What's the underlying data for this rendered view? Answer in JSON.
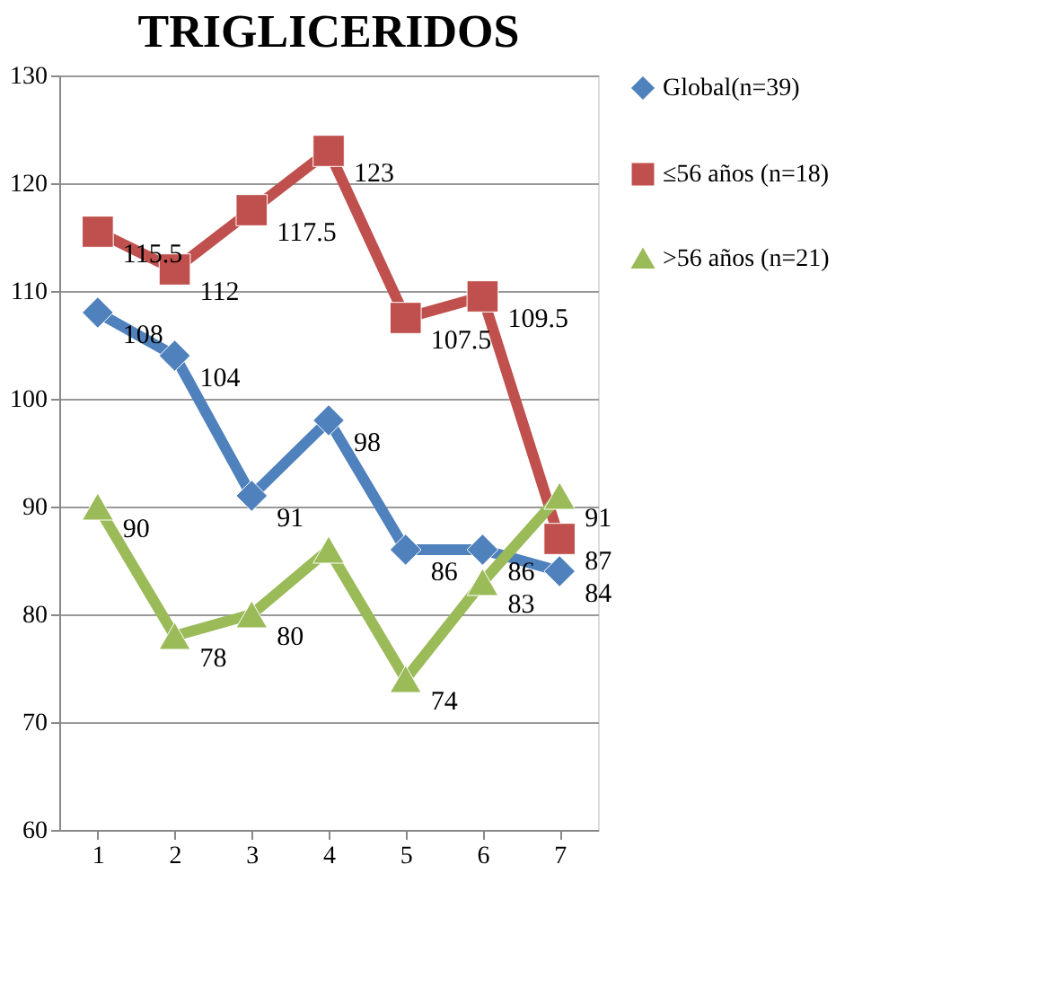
{
  "chart_data": {
    "type": "line",
    "title": "TRIGLICERIDOS",
    "categories": [
      "1",
      "2",
      "3",
      "4",
      "5",
      "6",
      "7"
    ],
    "ylim": [
      60,
      130
    ],
    "yticks": [
      60,
      70,
      80,
      90,
      100,
      110,
      120,
      130
    ],
    "grid": "y",
    "legend": "right",
    "series": [
      {
        "name": "Global(n=39)",
        "color": "#4f81bd",
        "marker": "diamond",
        "values": [
          108,
          104,
          91,
          98,
          86,
          86,
          84
        ],
        "value_labels": [
          "108",
          "104",
          "91",
          "98",
          "86",
          "86",
          "84"
        ]
      },
      {
        "name": "≤56 años (n=18)",
        "color": "#c0504d",
        "marker": "square",
        "values": [
          115.5,
          112,
          117.5,
          123,
          107.5,
          109.5,
          87
        ],
        "value_labels": [
          "115.5",
          "112",
          "117.5",
          "123",
          "107.5",
          "109.5",
          "87"
        ]
      },
      {
        "name": ">56 años (n=21)",
        "color": "#9bbb59",
        "marker": "triangle",
        "values": [
          90,
          78,
          80,
          86,
          74,
          83,
          91
        ],
        "value_labels": [
          "90",
          "78",
          "80",
          null,
          "74",
          "83",
          "91"
        ]
      }
    ]
  }
}
